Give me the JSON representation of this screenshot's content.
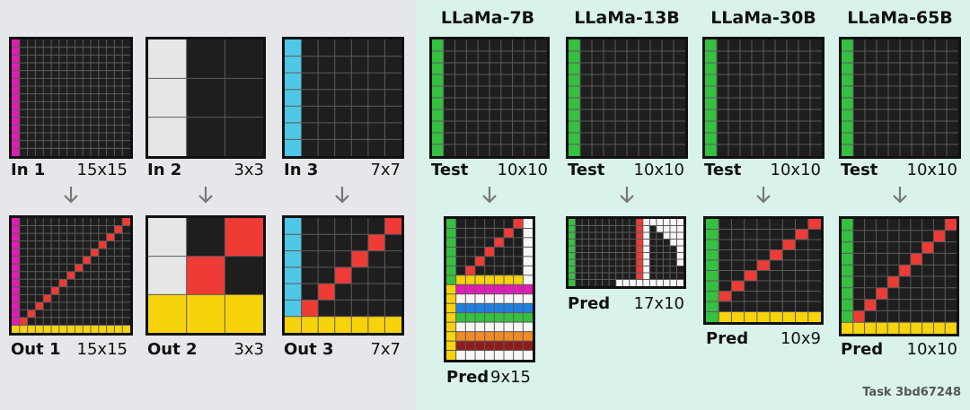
{
  "colors": {
    "black": "#1e1e1e",
    "magenta": "#e11bb5",
    "gray": "#e6e6e6",
    "cyan": "#4ec8e6",
    "red": "#ef3b36",
    "yellow": "#f6d30b",
    "green": "#35c040",
    "white": "#f7f7f7",
    "blue": "#1e7fe0",
    "orange": "#f08a24",
    "maroon": "#8f1d1d",
    "grid_line": "#5b5b5b",
    "left_bg": "#e6e7ea",
    "right_bg": "#d9f2ec"
  },
  "models": {
    "m1": "LLaMa-7B",
    "m2": "LLaMa-13B",
    "m3": "LLaMa-30B",
    "m4": "LLaMa-65B"
  },
  "labels": {
    "in1": {
      "name": "In 1",
      "size": "15x15"
    },
    "in2": {
      "name": "In 2",
      "size": "3x3"
    },
    "in3": {
      "name": "In 3",
      "size": "7x7"
    },
    "out1": {
      "name": "Out 1",
      "size": "15x15"
    },
    "out2": {
      "name": "Out 2",
      "size": "3x3"
    },
    "out3": {
      "name": "Out 3",
      "size": "7x7"
    },
    "test1": {
      "name": "Test",
      "size": "10x10"
    },
    "test2": {
      "name": "Test",
      "size": "10x10"
    },
    "test3": {
      "name": "Test",
      "size": "10x10"
    },
    "test4": {
      "name": "Test",
      "size": "10x10"
    },
    "pred1": {
      "name": "Pred",
      "size": "9x15"
    },
    "pred2": {
      "name": "Pred",
      "size": "17x10"
    },
    "pred3": {
      "name": "Pred",
      "size": "10x9"
    },
    "pred4": {
      "name": "Pred",
      "size": "10x10"
    }
  },
  "task": "Task 3bd67248",
  "grids": [
    {
      "id": "in1",
      "rows": 15,
      "cols": 15,
      "bg": "black",
      "ops": [
        [
          "col",
          0,
          "magenta"
        ]
      ]
    },
    {
      "id": "out1",
      "rows": 15,
      "cols": 15,
      "bg": "black",
      "ops": [
        [
          "col",
          0,
          "magenta"
        ],
        [
          "anti",
          "red"
        ],
        [
          "row",
          14,
          "yellow"
        ]
      ]
    },
    {
      "id": "in2",
      "rows": 3,
      "cols": 3,
      "bg": "black",
      "ops": [
        [
          "col",
          0,
          "gray"
        ]
      ]
    },
    {
      "id": "out2",
      "rows": 3,
      "cols": 3,
      "bg": "black",
      "ops": [
        [
          "col",
          0,
          "gray"
        ],
        [
          "anti",
          "red"
        ],
        [
          "row",
          2,
          "yellow"
        ]
      ]
    },
    {
      "id": "in3",
      "rows": 7,
      "cols": 7,
      "bg": "black",
      "ops": [
        [
          "col",
          0,
          "cyan"
        ]
      ]
    },
    {
      "id": "out3",
      "rows": 7,
      "cols": 7,
      "bg": "black",
      "ops": [
        [
          "col",
          0,
          "cyan"
        ],
        [
          "anti",
          "red"
        ],
        [
          "row",
          6,
          "yellow"
        ]
      ]
    },
    {
      "id": "test1",
      "rows": 10,
      "cols": 10,
      "bg": "black",
      "ops": [
        [
          "col",
          0,
          "green"
        ]
      ]
    },
    {
      "id": "test2",
      "rows": 10,
      "cols": 10,
      "bg": "black",
      "ops": [
        [
          "col",
          0,
          "green"
        ]
      ]
    },
    {
      "id": "test3",
      "rows": 10,
      "cols": 10,
      "bg": "black",
      "ops": [
        [
          "col",
          0,
          "green"
        ]
      ]
    },
    {
      "id": "test4",
      "rows": 10,
      "cols": 10,
      "bg": "black",
      "ops": [
        [
          "col",
          0,
          "green"
        ]
      ]
    },
    {
      "id": "pred1",
      "rows": 15,
      "cols": 9,
      "bg": "white",
      "ops": [
        [
          "rect",
          0,
          0,
          6,
          8,
          "black"
        ],
        [
          "col",
          0,
          "green"
        ],
        [
          "cells",
          "red",
          [
            [
              0,
              7
            ],
            [
              1,
              6
            ],
            [
              2,
              5
            ],
            [
              3,
              4
            ],
            [
              4,
              3
            ],
            [
              5,
              2
            ],
            [
              6,
              1
            ]
          ]
        ],
        [
          "rect",
          6,
          1,
          1,
          7,
          "yellow"
        ],
        [
          "rect",
          7,
          1,
          1,
          8,
          "magenta"
        ],
        [
          "rect",
          8,
          1,
          1,
          8,
          "white"
        ],
        [
          "rect",
          9,
          1,
          1,
          8,
          "blue"
        ],
        [
          "rect",
          10,
          1,
          1,
          8,
          "green"
        ],
        [
          "rect",
          11,
          1,
          1,
          8,
          "white"
        ],
        [
          "rect",
          12,
          1,
          1,
          8,
          "orange"
        ],
        [
          "rect",
          13,
          1,
          1,
          8,
          "maroon"
        ],
        [
          "rect",
          14,
          1,
          1,
          8,
          "white"
        ],
        [
          "rect",
          7,
          0,
          8,
          1,
          "yellow"
        ]
      ]
    },
    {
      "id": "pred2",
      "rows": 10,
      "cols": 17,
      "bg": "black",
      "ops": [
        [
          "col",
          0,
          "green"
        ],
        [
          "rect",
          0,
          10,
          1,
          1,
          "red"
        ],
        [
          "rect",
          1,
          10,
          8,
          1,
          "red"
        ],
        [
          "col",
          11,
          "white"
        ],
        [
          "cells",
          "white",
          [
            [
              0,
              12
            ],
            [
              0,
              13
            ],
            [
              0,
              14
            ],
            [
              0,
              15
            ],
            [
              0,
              16
            ],
            [
              1,
              13
            ],
            [
              1,
              14
            ],
            [
              1,
              15
            ],
            [
              1,
              16
            ],
            [
              2,
              14
            ],
            [
              2,
              15
            ],
            [
              2,
              16
            ],
            [
              3,
              15
            ],
            [
              3,
              16
            ],
            [
              4,
              16
            ],
            [
              5,
              16
            ],
            [
              6,
              16
            ]
          ]
        ],
        [
          "rect",
          9,
          7,
          1,
          10,
          "white"
        ]
      ]
    },
    {
      "id": "pred3",
      "rows": 10,
      "cols": 9,
      "bg": "black",
      "ops": [
        [
          "col",
          0,
          "green"
        ],
        [
          "anti9",
          "red"
        ],
        [
          "rect",
          9,
          1,
          1,
          8,
          "yellow"
        ]
      ]
    },
    {
      "id": "pred4",
      "rows": 10,
      "cols": 10,
      "bg": "black",
      "ops": [
        [
          "col",
          0,
          "green"
        ],
        [
          "anti",
          "red"
        ],
        [
          "row",
          9,
          "yellow"
        ]
      ]
    }
  ]
}
